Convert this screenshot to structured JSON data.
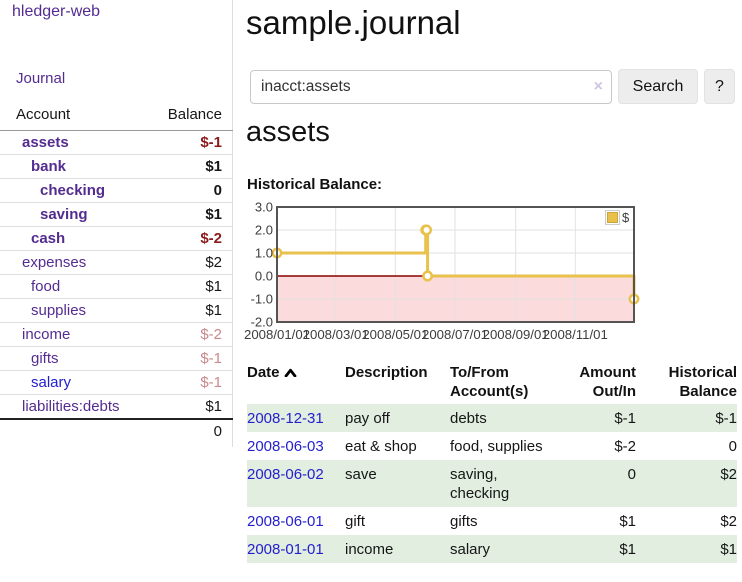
{
  "sidebar": {
    "brand": "hledger-web",
    "nav_journal": "Journal",
    "accounts_table": {
      "headers": {
        "account": "Account",
        "balance": "Balance"
      },
      "rows": [
        {
          "name": "assets",
          "balance": "$-1",
          "depth": 0,
          "bold": true,
          "balance_style": "neg-dark",
          "link_style": "visited"
        },
        {
          "name": "bank",
          "balance": "$1",
          "depth": 1,
          "bold": true,
          "balance_style": "normal",
          "link_style": "visited"
        },
        {
          "name": "checking",
          "balance": "0",
          "depth": 2,
          "bold": true,
          "balance_style": "normal",
          "link_style": "visited"
        },
        {
          "name": "saving",
          "balance": "$1",
          "depth": 2,
          "bold": true,
          "balance_style": "normal",
          "link_style": "visited"
        },
        {
          "name": "cash",
          "balance": "$-2",
          "depth": 1,
          "bold": true,
          "balance_style": "neg-dark",
          "link_style": "visited"
        },
        {
          "name": "expenses",
          "balance": "$2",
          "depth": 0,
          "bold": false,
          "balance_style": "normal",
          "link_style": "visited"
        },
        {
          "name": "food",
          "balance": "$1",
          "depth": 1,
          "bold": false,
          "balance_style": "normal",
          "link_style": "visited"
        },
        {
          "name": "supplies",
          "balance": "$1",
          "depth": 1,
          "bold": false,
          "balance_style": "normal",
          "link_style": "visited"
        },
        {
          "name": "income",
          "balance": "$-2",
          "depth": 0,
          "bold": false,
          "balance_style": "neg-light",
          "link_style": "visited"
        },
        {
          "name": "gifts",
          "balance": "$-1",
          "depth": 1,
          "bold": false,
          "balance_style": "neg-light",
          "link_style": "visited"
        },
        {
          "name": "salary",
          "balance": "$-1",
          "depth": 1,
          "bold": false,
          "balance_style": "neg-light",
          "link_style": "unvisited"
        },
        {
          "name": "liabilities:debts",
          "balance": "$1",
          "depth": 0,
          "bold": false,
          "balance_style": "normal",
          "link_style": "visited"
        }
      ],
      "total": "0"
    }
  },
  "header": {
    "title": "sample.journal"
  },
  "search": {
    "value": "inacct:assets",
    "clear_icon": "×",
    "button": "Search",
    "help_button": "?"
  },
  "account_page": {
    "title": "assets",
    "chart_label": "Historical Balance:"
  },
  "chart_data": {
    "type": "line",
    "title": "Historical Balance",
    "legend_position": "top-right",
    "legend_entries": [
      "$"
    ],
    "series": [
      {
        "name": "$",
        "step": true,
        "points": [
          [
            "2008-01-01",
            1
          ],
          [
            "2008-06-01",
            2
          ],
          [
            "2008-06-02",
            2
          ],
          [
            "2008-06-03",
            0
          ],
          [
            "2008-12-31",
            -1
          ]
        ]
      }
    ],
    "xlim": [
      "2008-01-01",
      "2008-12-31"
    ],
    "ylim": [
      -2,
      3
    ],
    "y_ticks": [
      3.0,
      2.0,
      1.0,
      0.0,
      -1.0,
      -2.0
    ],
    "x_ticks": [
      {
        "date": "2008-01-01",
        "label": "2008/01/01"
      },
      {
        "date": "2008-03-01",
        "label": "2008/03/01"
      },
      {
        "date": "2008-05-01",
        "label": "2008/05/01"
      },
      {
        "date": "2008-07-01",
        "label": "2008/07/01"
      },
      {
        "date": "2008-09-01",
        "label": "2008/09/01"
      },
      {
        "date": "2008-11-01",
        "label": "2008/11/01"
      }
    ],
    "grid": true,
    "styles": {
      "line_color": "#e9c14d",
      "marker_fill": "#ffffff",
      "legend_box_fill": "#e8c04a",
      "legend_box_border": "#c9a53b",
      "negative_region": "#fbdbdb",
      "zero_line": "#8b0000",
      "plot_border": "#545454",
      "grid_line": "#e2e2e2",
      "axis_text": "#3d3d3d"
    }
  },
  "register": {
    "headers": [
      {
        "label": "Date",
        "sorted": "asc"
      },
      {
        "label": "Description"
      },
      {
        "label": "To/From Account(s)"
      },
      {
        "label": "Amount Out/In"
      },
      {
        "label": "Historical Balance"
      }
    ],
    "rows": [
      {
        "date": "2008-12-31",
        "description": "pay off",
        "accounts": "debts",
        "amount": "$-1",
        "balance": "$-1"
      },
      {
        "date": "2008-06-03",
        "description": "eat & shop",
        "accounts": "food, supplies",
        "amount": "$-2",
        "balance": "0"
      },
      {
        "date": "2008-06-02",
        "description": "save",
        "accounts": "saving, checking",
        "amount": "0",
        "balance": "$2"
      },
      {
        "date": "2008-06-01",
        "description": "gift",
        "accounts": "gifts",
        "amount": "$1",
        "balance": "$2"
      },
      {
        "date": "2008-01-01",
        "description": "income",
        "accounts": "salary",
        "amount": "$1",
        "balance": "$1"
      }
    ]
  },
  "colors": {
    "link_purple": "#542c90",
    "link_blue": "#2520ce",
    "negative_bold": "#8c1a1a",
    "negative_light": "#c88989",
    "row_stripe_green": "#e1eee0",
    "chart_gold": "#e9c14d",
    "chart_negative_fill": "#fbdbdb"
  }
}
